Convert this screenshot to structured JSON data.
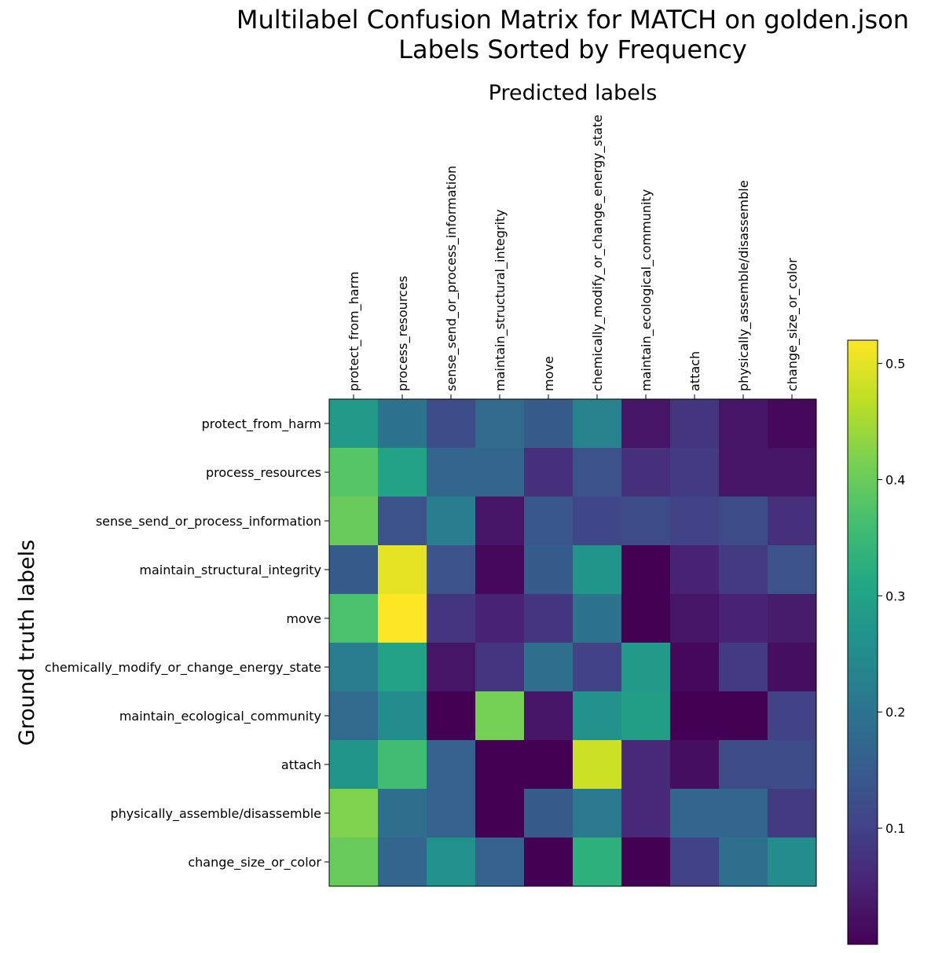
{
  "chart_data": {
    "type": "heatmap",
    "title": "Multilabel Confusion Matrix for MATCH on golden.json",
    "subtitle": "Labels Sorted by Frequency",
    "xlabel": "Predicted labels",
    "ylabel": "Ground truth labels",
    "x_labels": [
      "protect_from_harm",
      "process_resources",
      "sense_send_or_process_information",
      "maintain_structural_integrity",
      "move",
      "chemically_modify_or_change_energy_state",
      "maintain_ecological_community",
      "attach",
      "physically_assemble/disassemble",
      "change_size_or_color"
    ],
    "y_labels": [
      "protect_from_harm",
      "process_resources",
      "sense_send_or_process_information",
      "maintain_structural_integrity",
      "move",
      "chemically_modify_or_change_energy_state",
      "maintain_ecological_community",
      "attach",
      "physically_assemble/disassemble",
      "change_size_or_color"
    ],
    "values": [
      [
        0.28,
        0.2,
        0.12,
        0.18,
        0.15,
        0.23,
        0.03,
        0.08,
        0.03,
        0.01
      ],
      [
        0.38,
        0.3,
        0.17,
        0.17,
        0.07,
        0.13,
        0.07,
        0.09,
        0.03,
        0.03
      ],
      [
        0.4,
        0.13,
        0.22,
        0.03,
        0.14,
        0.11,
        0.12,
        0.1,
        0.12,
        0.07
      ],
      [
        0.15,
        0.5,
        0.13,
        0.01,
        0.15,
        0.27,
        0.0,
        0.05,
        0.09,
        0.13
      ],
      [
        0.37,
        0.52,
        0.08,
        0.05,
        0.08,
        0.2,
        0.0,
        0.03,
        0.05,
        0.04
      ],
      [
        0.22,
        0.3,
        0.03,
        0.08,
        0.19,
        0.1,
        0.28,
        0.01,
        0.09,
        0.02
      ],
      [
        0.18,
        0.25,
        0.0,
        0.41,
        0.03,
        0.26,
        0.29,
        0.0,
        0.0,
        0.1
      ],
      [
        0.27,
        0.36,
        0.16,
        0.0,
        0.0,
        0.48,
        0.06,
        0.02,
        0.12,
        0.12
      ],
      [
        0.42,
        0.19,
        0.16,
        0.0,
        0.15,
        0.21,
        0.06,
        0.17,
        0.17,
        0.09
      ],
      [
        0.4,
        0.17,
        0.26,
        0.16,
        0.0,
        0.33,
        0.0,
        0.1,
        0.19,
        0.25
      ]
    ],
    "colormap": "viridis",
    "vmin": 0.0,
    "vmax": 0.52,
    "colorbar_ticks": [
      {
        "value": 0.1,
        "label": "0.1"
      },
      {
        "value": 0.2,
        "label": "0.2"
      },
      {
        "value": 0.3,
        "label": "0.3"
      },
      {
        "value": 0.4,
        "label": "0.4"
      },
      {
        "value": 0.5,
        "label": "0.5"
      }
    ],
    "colorbar_position": "right",
    "grid": false
  }
}
